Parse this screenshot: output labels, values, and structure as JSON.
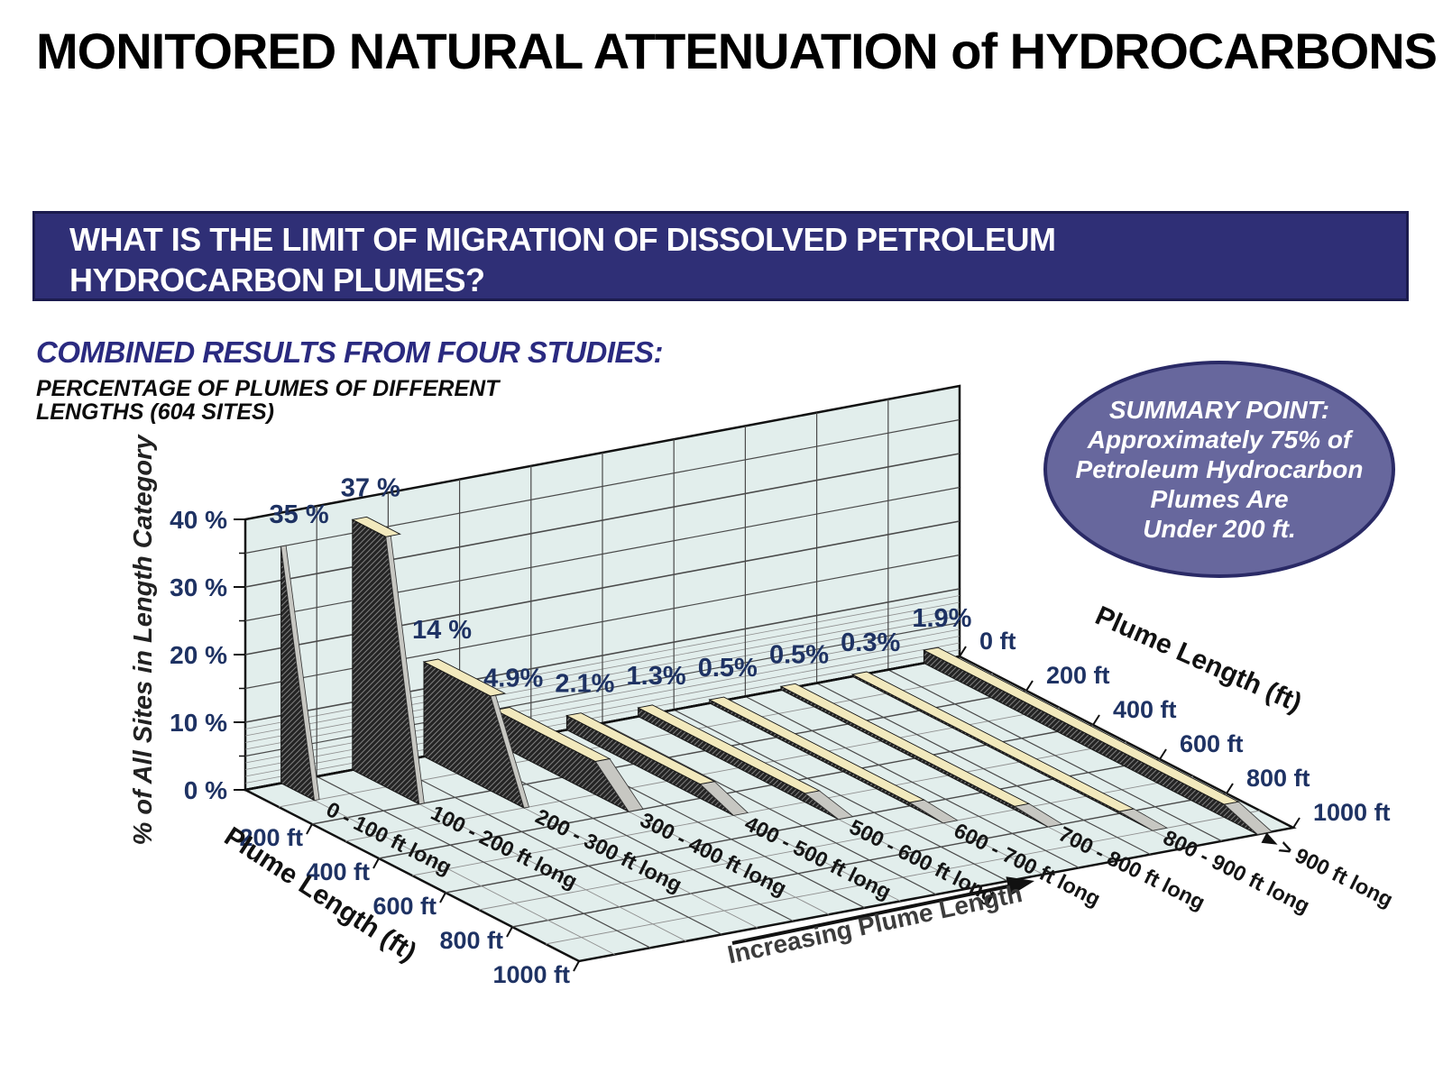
{
  "title": "MONITORED NATURAL ATTENUATION of HYDROCARBONS",
  "banner": {
    "line1": "WHAT IS THE LIMIT OF MIGRATION OF DISSOLVED PETROLEUM",
    "line2": "HYDROCARBON PLUMES?"
  },
  "headings": {
    "combined": "COMBINED RESULTS FROM FOUR STUDIES:",
    "sub1": "PERCENTAGE OF PLUMES OF DIFFERENT",
    "sub2": "LENGTHS (604 SITES)"
  },
  "summary": {
    "title": "SUMMARY POINT:",
    "lines": [
      "Approximately 75% of",
      "Petroleum Hydrocarbon",
      "Plumes Are",
      "Under 200 ft."
    ]
  },
  "chart_data": {
    "type": "area",
    "subtype": "3d-ribbon",
    "title": "PERCENTAGE OF PLUMES OF DIFFERENT LENGTHS (604 SITES)",
    "categories": [
      "0 - 100 ft long",
      "100 - 200 ft long",
      "200 - 300 ft long",
      "300 - 400 ft long",
      "400 - 500 ft long",
      "500 - 600 ft long",
      "600 - 700 ft long",
      "700 - 800 ft long",
      "800 - 900 ft long",
      "> 900 ft long"
    ],
    "values": [
      35,
      37,
      14,
      4.9,
      2.1,
      1.3,
      0.5,
      0.5,
      0.3,
      1.9
    ],
    "value_labels": [
      "35 %",
      "37 %",
      "14 %",
      "4.9%",
      "2.1%",
      "1.3%",
      "0.5%",
      "0.5%",
      "0.3%",
      "1.9%"
    ],
    "ribbon_plateau_ft": [
      0,
      100,
      200,
      300,
      400,
      500,
      600,
      700,
      800,
      900
    ],
    "ribbon_end_ft": [
      100,
      200,
      300,
      400,
      500,
      600,
      700,
      800,
      900,
      1000
    ],
    "ylabel": "% of All Sites in Length Category",
    "y_ticks": [
      "0 %",
      "10 %",
      "20 %",
      "30 %",
      "40 %"
    ],
    "ylim": [
      0,
      40
    ],
    "y_major_step": 5,
    "y_minor_step": 1,
    "depth_axis_label": "Plume Length (ft)",
    "depth_ticks_left": [
      "200 ft",
      "400 ft",
      "600 ft",
      "800 ft",
      "1000 ft"
    ],
    "depth_ticks_right": [
      "0 ft",
      "200 ft",
      "400 ft",
      "600 ft",
      "800 ft",
      "1000 ft"
    ],
    "depth_range_ft": [
      0,
      1000
    ],
    "arrow_label": "Increasing Plume Length",
    "grid": true,
    "legend": "none",
    "colors": {
      "plane": "#e2eeec",
      "grid_major": "#4a4a4a",
      "grid_minor": "#8f8f8f",
      "ribbon_face": "#242424",
      "ribbon_hatch": "#7c7c7c",
      "ribbon_top": "#f2e9bd",
      "ribbon_tip": "#c7c7c2",
      "label": "#1e3263",
      "heading_navy": "#2a2a80",
      "banner_bg": "#2f2f76",
      "banner_border": "#1b1b4e",
      "callout_fill": "#67679d",
      "callout_border": "#2a2a66"
    }
  }
}
